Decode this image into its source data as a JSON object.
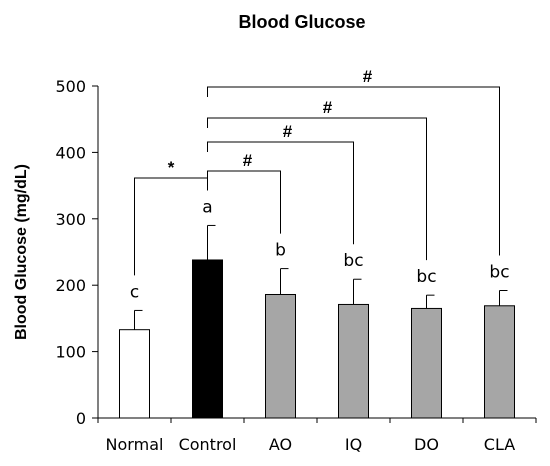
{
  "chart_data": {
    "type": "bar",
    "title": "Blood Glucose",
    "ylabel": "Blood Glucose (mg/dL)",
    "xlabel": "",
    "ylim": [
      0,
      500
    ],
    "yticks": [
      0,
      100,
      200,
      300,
      400,
      500
    ],
    "grid": false,
    "categories": [
      "Normal",
      "Control",
      "AO",
      "IQ",
      "DO",
      "CLA"
    ],
    "values": [
      133,
      238,
      186,
      171,
      165,
      169
    ],
    "errors": [
      29,
      52,
      39,
      38,
      20,
      23
    ],
    "letters": [
      "c",
      "a",
      "b",
      "bc",
      "bc",
      "bc"
    ],
    "colors": [
      "#ffffff",
      "#000000",
      "#a6a6a6",
      "#a6a6a6",
      "#a6a6a6",
      "#a6a6a6"
    ],
    "comparisons": [
      {
        "from": "Normal",
        "to": "Control",
        "symbol": "*"
      },
      {
        "from": "Control",
        "to": "AO",
        "symbol": "#"
      },
      {
        "from": "Control",
        "to": "IQ",
        "symbol": "#"
      },
      {
        "from": "Control",
        "to": "DO",
        "symbol": "#"
      },
      {
        "from": "Control",
        "to": "CLA",
        "symbol": "#"
      }
    ]
  }
}
